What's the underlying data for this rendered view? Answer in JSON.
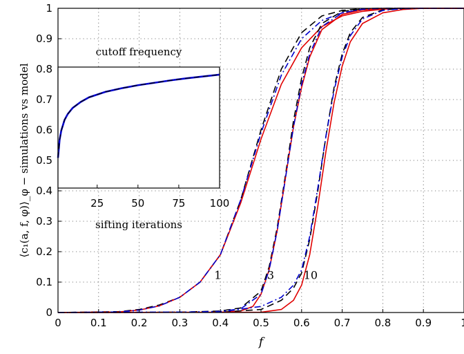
{
  "chart_data": [
    {
      "type": "line",
      "xlabel": "f",
      "ylabel": "⟨c₁(a, f, φ)⟩_φ − simulations vs model",
      "xlim": [
        0,
        1
      ],
      "ylim": [
        0,
        1
      ],
      "x_ticks": [
        "0",
        "0.1",
        "0.2",
        "0.3",
        "0.4",
        "0.5",
        "0.6",
        "0.7",
        "0.8",
        "0.9",
        "1"
      ],
      "y_ticks": [
        "0",
        "0.1",
        "0.2",
        "0.3",
        "0.4",
        "0.5",
        "0.6",
        "0.7",
        "0.8",
        "0.9",
        "1"
      ],
      "grid": true,
      "colors": {
        "simulation_dashed": "#000000",
        "model_solid": "#e00000",
        "simulation_dashdot": "#0000cc"
      },
      "annotations": [
        {
          "text": "1",
          "x": 0.385,
          "y": 0.11
        },
        {
          "text": "3",
          "x": 0.515,
          "y": 0.11
        },
        {
          "text": "10",
          "x": 0.605,
          "y": 0.11
        }
      ],
      "series": [
        {
          "style": "dashed",
          "color": "#000000",
          "group": "1",
          "x": [
            0,
            0.15,
            0.2,
            0.25,
            0.3,
            0.35,
            0.4,
            0.45,
            0.5,
            0.55,
            0.6,
            0.65,
            0.7,
            0.75,
            0.8,
            1
          ],
          "y": [
            0,
            0.003,
            0.01,
            0.025,
            0.05,
            0.1,
            0.19,
            0.37,
            0.6,
            0.8,
            0.92,
            0.975,
            0.993,
            0.999,
            1,
            1
          ]
        },
        {
          "style": "solid",
          "color": "#e00000",
          "group": "1",
          "x": [
            0,
            0.15,
            0.2,
            0.25,
            0.3,
            0.35,
            0.4,
            0.45,
            0.5,
            0.55,
            0.6,
            0.65,
            0.7,
            0.75,
            0.8,
            0.85,
            1
          ],
          "y": [
            0,
            0.002,
            0.008,
            0.022,
            0.05,
            0.1,
            0.19,
            0.36,
            0.57,
            0.75,
            0.87,
            0.94,
            0.975,
            0.99,
            0.997,
            1,
            1
          ]
        },
        {
          "style": "dashdot",
          "color": "#0000cc",
          "group": "1",
          "x": [
            0,
            0.15,
            0.2,
            0.25,
            0.3,
            0.35,
            0.4,
            0.45,
            0.5,
            0.55,
            0.6,
            0.65,
            0.7,
            0.75,
            0.8,
            0.85,
            1
          ],
          "y": [
            0,
            0.002,
            0.008,
            0.022,
            0.05,
            0.1,
            0.19,
            0.37,
            0.59,
            0.78,
            0.9,
            0.96,
            0.985,
            0.995,
            0.999,
            1,
            1
          ]
        },
        {
          "style": "dashed",
          "color": "#000000",
          "group": "3",
          "x": [
            0,
            0.3,
            0.4,
            0.45,
            0.5,
            0.52,
            0.54,
            0.56,
            0.58,
            0.6,
            0.62,
            0.65,
            0.7,
            0.75,
            0.8,
            0.85,
            1
          ],
          "y": [
            0,
            0.001,
            0.005,
            0.015,
            0.07,
            0.15,
            0.28,
            0.45,
            0.63,
            0.77,
            0.87,
            0.95,
            0.99,
            0.998,
            1,
            1,
            1
          ]
        },
        {
          "style": "solid",
          "color": "#e00000",
          "group": "3",
          "x": [
            0,
            0.4,
            0.45,
            0.48,
            0.5,
            0.52,
            0.54,
            0.56,
            0.58,
            0.6,
            0.62,
            0.65,
            0.7,
            0.75,
            0.8,
            0.85,
            1
          ],
          "y": [
            0,
            0.001,
            0.005,
            0.02,
            0.06,
            0.14,
            0.27,
            0.44,
            0.61,
            0.74,
            0.84,
            0.93,
            0.98,
            0.995,
            0.999,
            1,
            1
          ]
        },
        {
          "style": "dashdot",
          "color": "#0000cc",
          "group": "3",
          "x": [
            0,
            0.3,
            0.4,
            0.45,
            0.5,
            0.52,
            0.54,
            0.56,
            0.58,
            0.6,
            0.62,
            0.65,
            0.7,
            0.75,
            0.8,
            0.85,
            1
          ],
          "y": [
            0,
            0.001,
            0.004,
            0.012,
            0.06,
            0.14,
            0.27,
            0.44,
            0.61,
            0.75,
            0.85,
            0.94,
            0.985,
            0.997,
            1,
            1,
            1
          ]
        },
        {
          "style": "dashed",
          "color": "#000000",
          "group": "10",
          "x": [
            0,
            0.4,
            0.5,
            0.55,
            0.58,
            0.6,
            0.62,
            0.64,
            0.66,
            0.68,
            0.7,
            0.72,
            0.75,
            0.8,
            0.85,
            0.9,
            1
          ],
          "y": [
            0,
            0.001,
            0.01,
            0.04,
            0.08,
            0.13,
            0.24,
            0.4,
            0.58,
            0.74,
            0.85,
            0.92,
            0.97,
            0.995,
            0.999,
            1,
            1
          ]
        },
        {
          "style": "solid",
          "color": "#e00000",
          "group": "10",
          "x": [
            0,
            0.5,
            0.55,
            0.58,
            0.6,
            0.62,
            0.64,
            0.66,
            0.68,
            0.7,
            0.72,
            0.75,
            0.8,
            0.85,
            0.9,
            1
          ],
          "y": [
            0,
            0.001,
            0.01,
            0.04,
            0.09,
            0.19,
            0.35,
            0.53,
            0.69,
            0.81,
            0.89,
            0.95,
            0.985,
            0.996,
            1,
            1
          ]
        },
        {
          "style": "dashdot",
          "color": "#0000cc",
          "group": "10",
          "x": [
            0,
            0.4,
            0.5,
            0.55,
            0.58,
            0.6,
            0.62,
            0.64,
            0.66,
            0.68,
            0.7,
            0.72,
            0.75,
            0.8,
            0.85,
            0.9,
            1
          ],
          "y": [
            0,
            0.002,
            0.02,
            0.05,
            0.09,
            0.14,
            0.25,
            0.41,
            0.58,
            0.73,
            0.84,
            0.91,
            0.965,
            0.993,
            0.999,
            1,
            1
          ]
        }
      ]
    },
    {
      "type": "line",
      "title": "cutoff frequency",
      "xlabel": "sifting iterations",
      "xlim": [
        1,
        100
      ],
      "ylim": [
        0.4,
        0.8
      ],
      "x_ticks": [
        "25",
        "50",
        "75",
        "100"
      ],
      "series": [
        {
          "color": "#0000cc",
          "x": [
            1,
            2,
            3,
            5,
            7,
            10,
            15,
            20,
            30,
            40,
            50,
            60,
            70,
            80,
            90,
            100
          ],
          "y": [
            0.5,
            0.56,
            0.59,
            0.625,
            0.645,
            0.665,
            0.685,
            0.7,
            0.718,
            0.73,
            0.74,
            0.748,
            0.756,
            0.763,
            0.769,
            0.775
          ]
        },
        {
          "color": "#000000",
          "x": [
            1,
            2,
            3,
            5,
            7,
            10,
            15,
            20,
            30,
            40,
            50,
            60,
            70,
            80,
            90,
            100
          ],
          "y": [
            0.5,
            0.56,
            0.59,
            0.625,
            0.645,
            0.665,
            0.685,
            0.7,
            0.718,
            0.73,
            0.74,
            0.748,
            0.756,
            0.763,
            0.769,
            0.775
          ]
        }
      ]
    }
  ]
}
